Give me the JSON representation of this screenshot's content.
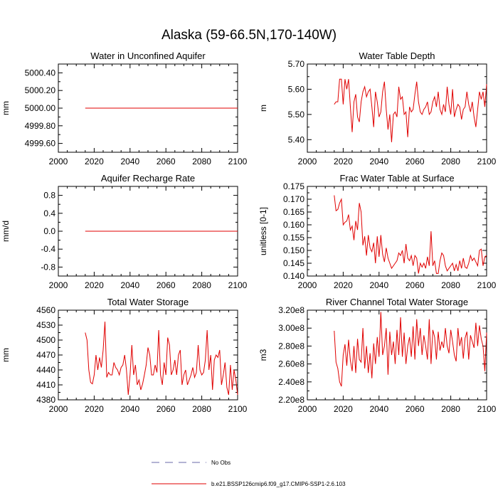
{
  "figure_title": "Alaska (59-66.5N,170-140W)",
  "legend": {
    "entries": [
      {
        "label": "No Obs",
        "style": "dashed",
        "color": "#6a6aa8"
      },
      {
        "label": "b.e21.BSSP126cmip6.f09_g17.CMIP6-SSP1-2.6.103",
        "style": "solid",
        "color": "#e00000"
      }
    ]
  },
  "colors": {
    "series": "#e00000",
    "obs": "#6a6aa8",
    "axis": "#000000"
  },
  "chart_data": [
    {
      "type": "line",
      "title": "Water in Unconfined Aquifer",
      "ylabel": "mm",
      "xlim": [
        2000,
        2100
      ],
      "ylim": [
        4999.5,
        5000.5
      ],
      "xticks": [
        2000,
        2020,
        2040,
        2060,
        2080,
        2100
      ],
      "xtick_labels": [
        "2000",
        "2020",
        "2040",
        "2060",
        "2080",
        "2100"
      ],
      "yticks": [
        4999.6,
        4999.8,
        5000.0,
        5000.2,
        5000.4
      ],
      "ytick_labels": [
        "4999.60",
        "4999.80",
        "5000.00",
        "5000.20",
        "5000.40"
      ],
      "series": [
        {
          "name": "b.e21.BSSP126cmip6.f09_g17.CMIP6-SSP1-2.6.103",
          "x_start": 2015,
          "values": [
            5000.0,
            5000.0,
            5000.0,
            5000.0,
            5000.0,
            5000.0,
            5000.0,
            5000.0,
            5000.0,
            5000.0,
            5000.0,
            5000.0,
            5000.0,
            5000.0,
            5000.0,
            5000.0,
            5000.0,
            5000.0,
            5000.0,
            5000.0,
            5000.0,
            5000.0,
            5000.0,
            5000.0,
            5000.0,
            5000.0,
            5000.0,
            5000.0,
            5000.0,
            5000.0,
            5000.0,
            5000.0,
            5000.0,
            5000.0,
            5000.0,
            5000.0,
            5000.0,
            5000.0,
            5000.0,
            5000.0,
            5000.0,
            5000.0,
            5000.0,
            5000.0,
            5000.0,
            5000.0,
            5000.0,
            5000.0,
            5000.0,
            5000.0,
            5000.0,
            5000.0,
            5000.0,
            5000.0,
            5000.0,
            5000.0,
            5000.0,
            5000.0,
            5000.0,
            5000.0,
            5000.0,
            5000.0,
            5000.0,
            5000.0,
            5000.0,
            5000.0,
            5000.0,
            5000.0,
            5000.0,
            5000.0,
            5000.0,
            5000.0,
            5000.0,
            5000.0,
            5000.0,
            5000.0,
            5000.0,
            5000.0,
            5000.0,
            5000.0,
            5000.0,
            5000.0,
            5000.0,
            5000.0,
            5000.0,
            5000.0
          ]
        }
      ]
    },
    {
      "type": "line",
      "title": "Water Table Depth",
      "ylabel": "m",
      "xlim": [
        2000,
        2100
      ],
      "ylim": [
        5.35,
        5.7
      ],
      "xticks": [
        2000,
        2020,
        2040,
        2060,
        2080,
        2100
      ],
      "xtick_labels": [
        "2000",
        "2020",
        "2040",
        "2060",
        "2080",
        "2100"
      ],
      "yticks": [
        5.4,
        5.5,
        5.6,
        5.7
      ],
      "ytick_labels": [
        "5.40",
        "5.50",
        "5.60",
        "5.70"
      ],
      "series": [
        {
          "name": "b.e21.BSSP126cmip6.f09_g17.CMIP6-SSP1-2.6.103",
          "x_start": 2015,
          "values": [
            5.54,
            5.55,
            5.55,
            5.64,
            5.64,
            5.54,
            5.64,
            5.6,
            5.64,
            5.53,
            5.43,
            5.55,
            5.58,
            5.49,
            5.47,
            5.55,
            5.59,
            5.61,
            5.57,
            5.59,
            5.6,
            5.53,
            5.45,
            5.59,
            5.55,
            5.49,
            5.51,
            5.59,
            5.63,
            5.52,
            5.44,
            5.5,
            5.39,
            5.5,
            5.51,
            5.49,
            5.61,
            5.56,
            5.57,
            5.5,
            5.51,
            5.41,
            5.53,
            5.51,
            5.52,
            5.58,
            5.63,
            5.55,
            5.51,
            5.5,
            5.52,
            5.53,
            5.55,
            5.5,
            5.51,
            5.55,
            5.57,
            5.53,
            5.59,
            5.52,
            5.5,
            5.54,
            5.51,
            5.61,
            5.54,
            5.5,
            5.6,
            5.49,
            5.52,
            5.54,
            5.53,
            5.48,
            5.52,
            5.53,
            5.59,
            5.54,
            5.51,
            5.55,
            5.49,
            5.45,
            5.52,
            5.59,
            5.56,
            5.59,
            5.53,
            5.62
          ]
        }
      ]
    },
    {
      "type": "line",
      "title": "Aquifer Recharge Rate",
      "ylabel": "mm/d",
      "xlim": [
        2000,
        2100
      ],
      "ylim": [
        -1.0,
        1.0
      ],
      "xticks": [
        2000,
        2020,
        2040,
        2060,
        2080,
        2100
      ],
      "xtick_labels": [
        "2000",
        "2020",
        "2040",
        "2060",
        "2080",
        "2100"
      ],
      "yticks": [
        -0.8,
        -0.4,
        0.0,
        0.4,
        0.8
      ],
      "ytick_labels": [
        "-0.8",
        "-0.4",
        "0.0",
        "0.4",
        "0.8"
      ],
      "series": [
        {
          "name": "b.e21.BSSP126cmip6.f09_g17.CMIP6-SSP1-2.6.103",
          "x_start": 2015,
          "values": [
            0.0,
            0.0,
            0.0,
            0.0,
            0.0,
            0.0,
            0.0,
            0.0,
            0.0,
            0.0,
            0.0,
            0.0,
            0.0,
            0.0,
            0.0,
            0.0,
            0.0,
            0.0,
            0.0,
            0.0,
            0.0,
            0.0,
            0.0,
            0.0,
            0.0,
            0.0,
            0.0,
            0.0,
            0.0,
            0.0,
            0.0,
            0.0,
            0.0,
            0.0,
            0.0,
            0.0,
            0.0,
            0.0,
            0.0,
            0.0,
            0.0,
            0.0,
            0.0,
            0.0,
            0.0,
            0.0,
            0.0,
            0.0,
            0.0,
            0.0,
            0.0,
            0.0,
            0.0,
            0.0,
            0.0,
            0.0,
            0.0,
            0.0,
            0.0,
            0.0,
            0.0,
            0.0,
            0.0,
            0.0,
            0.0,
            0.0,
            0.0,
            0.0,
            0.0,
            0.0,
            0.0,
            0.0,
            0.0,
            0.0,
            0.0,
            0.0,
            0.0,
            0.0,
            0.0,
            0.0,
            0.0,
            0.0,
            0.0,
            0.0,
            0.0,
            0.0
          ]
        }
      ]
    },
    {
      "type": "line",
      "title": "Frac Water Table at Surface",
      "ylabel": "unitless [0-1]",
      "xlim": [
        2000,
        2100
      ],
      "ylim": [
        0.14,
        0.175
      ],
      "xticks": [
        2000,
        2020,
        2040,
        2060,
        2080,
        2100
      ],
      "xtick_labels": [
        "2000",
        "2020",
        "2040",
        "2060",
        "2080",
        "2100"
      ],
      "yticks": [
        0.14,
        0.145,
        0.15,
        0.155,
        0.16,
        0.165,
        0.17,
        0.175
      ],
      "ytick_labels": [
        "0.140",
        "0.145",
        "0.150",
        "0.155",
        "0.160",
        "0.165",
        "0.170",
        "0.175"
      ],
      "series": [
        {
          "name": "b.e21.BSSP126cmip6.f09_g17.CMIP6-SSP1-2.6.103",
          "x_start": 2015,
          "values": [
            0.1715,
            0.1655,
            0.166,
            0.1685,
            0.17,
            0.16,
            0.161,
            0.1615,
            0.164,
            0.158,
            0.1595,
            0.154,
            0.1615,
            0.158,
            0.1685,
            0.165,
            0.152,
            0.1555,
            0.148,
            0.156,
            0.151,
            0.1495,
            0.153,
            0.145,
            0.1555,
            0.1475,
            0.156,
            0.1485,
            0.1455,
            0.151,
            0.147,
            0.145,
            0.143,
            0.144,
            0.145,
            0.146,
            0.149,
            0.148,
            0.15,
            0.145,
            0.1525,
            0.147,
            0.146,
            0.148,
            0.144,
            0.148,
            0.147,
            0.141,
            0.145,
            0.1435,
            0.145,
            0.143,
            0.1475,
            0.144,
            0.1575,
            0.144,
            0.146,
            0.141,
            0.141,
            0.146,
            0.149,
            0.148,
            0.144,
            0.142,
            0.143,
            0.144,
            0.145,
            0.142,
            0.1445,
            0.142,
            0.146,
            0.143,
            0.147,
            0.1435,
            0.143,
            0.145,
            0.148,
            0.146,
            0.147,
            0.1455,
            0.144,
            0.15,
            0.1505,
            0.144,
            0.1475,
            0.148
          ]
        }
      ]
    },
    {
      "type": "line",
      "title": "Total Water Storage",
      "ylabel": "mm",
      "xlim": [
        2000,
        2100
      ],
      "ylim": [
        4380,
        4560
      ],
      "xticks": [
        2000,
        2020,
        2040,
        2060,
        2080,
        2100
      ],
      "xtick_labels": [
        "2000",
        "2020",
        "2040",
        "2060",
        "2080",
        "2100"
      ],
      "yticks": [
        4380,
        4410,
        4440,
        4470,
        4500,
        4530,
        4560
      ],
      "ytick_labels": [
        "4380",
        "4410",
        "4440",
        "4470",
        "4500",
        "4530",
        "4560"
      ],
      "series": [
        {
          "name": "b.e21.BSSP126cmip6.f09_g17.CMIP6-SSP1-2.6.103",
          "x_start": 2015,
          "values": [
            4515,
            4500,
            4440,
            4415,
            4412,
            4430,
            4470,
            4440,
            4465,
            4445,
            4480,
            4537,
            4425,
            4435,
            4430,
            4430,
            4455,
            4445,
            4440,
            4430,
            4445,
            4450,
            4470,
            4440,
            4390,
            4430,
            4490,
            4430,
            4450,
            4410,
            4420,
            4400,
            4412,
            4430,
            4450,
            4485,
            4470,
            4430,
            4430,
            4450,
            4435,
            4520,
            4430,
            4410,
            4455,
            4430,
            4505,
            4490,
            4430,
            4440,
            4460,
            4430,
            4470,
            4480,
            4410,
            4430,
            4440,
            4410,
            4420,
            4430,
            4445,
            4425,
            4435,
            4490,
            4440,
            4430,
            4435,
            4460,
            4520,
            4440,
            4470,
            4400,
            4460,
            4470,
            4465,
            4480,
            4410,
            4430,
            4455,
            4405,
            4390,
            4450,
            4400,
            4440,
            4420,
            4390
          ]
        }
      ]
    },
    {
      "type": "line",
      "title": "River Channel Total Water Storage",
      "ylabel": "m3",
      "xlim": [
        2000,
        2100
      ],
      "ylim": [
        220000000,
        320000000
      ],
      "xticks": [
        2000,
        2020,
        2040,
        2060,
        2080,
        2100
      ],
      "xtick_labels": [
        "2000",
        "2020",
        "2040",
        "2060",
        "2080",
        "2100"
      ],
      "yticks": [
        220000000,
        240000000,
        260000000,
        280000000,
        300000000,
        320000000
      ],
      "ytick_labels": [
        "2.20e8",
        "2.40e8",
        "2.60e8",
        "2.80e8",
        "3.00e8",
        "3.20e8"
      ],
      "series": [
        {
          "name": "b.e21.BSSP126cmip6.f09_g17.CMIP6-SSP1-2.6.103",
          "x_start": 2015,
          "values": [
            297000000,
            262000000,
            255000000,
            240000000,
            235000000,
            270000000,
            282000000,
            258000000,
            287000000,
            264000000,
            252000000,
            280000000,
            250000000,
            288000000,
            265000000,
            262000000,
            300000000,
            255000000,
            280000000,
            250000000,
            272000000,
            244000000,
            283000000,
            260000000,
            290000000,
            268000000,
            318000000,
            270000000,
            280000000,
            300000000,
            248000000,
            296000000,
            270000000,
            285000000,
            260000000,
            298000000,
            270000000,
            312000000,
            268000000,
            295000000,
            260000000,
            280000000,
            290000000,
            268000000,
            302000000,
            265000000,
            310000000,
            280000000,
            300000000,
            270000000,
            292000000,
            280000000,
            265000000,
            310000000,
            260000000,
            298000000,
            290000000,
            265000000,
            296000000,
            275000000,
            285000000,
            278000000,
            300000000,
            280000000,
            272000000,
            298000000,
            285000000,
            270000000,
            263000000,
            300000000,
            280000000,
            290000000,
            266000000,
            289000000,
            296000000,
            265000000,
            292000000,
            285000000,
            278000000,
            306000000,
            280000000,
            303000000,
            288000000,
            280000000,
            252000000,
            295000000
          ]
        }
      ]
    }
  ]
}
